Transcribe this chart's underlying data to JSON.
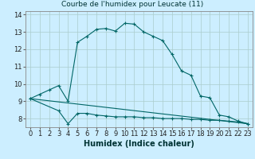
{
  "title": "Courbe de l'humidex pour Leucate (11)",
  "xlabel": "Humidex (Indice chaleur)",
  "bg_color": "#cceeff",
  "grid_color": "#aacccc",
  "line_color": "#006666",
  "xlim": [
    -0.5,
    23.5
  ],
  "ylim": [
    7.5,
    14.2
  ],
  "xticks": [
    0,
    1,
    2,
    3,
    4,
    5,
    6,
    7,
    8,
    9,
    10,
    11,
    12,
    13,
    14,
    15,
    16,
    17,
    18,
    19,
    20,
    21,
    22,
    23
  ],
  "yticks": [
    8,
    9,
    10,
    11,
    12,
    13,
    14
  ],
  "curve1_x": [
    0,
    1,
    2,
    3,
    4,
    5,
    6,
    7,
    8,
    9,
    10,
    11,
    12,
    13,
    14,
    15,
    16,
    17,
    18,
    19,
    20,
    21,
    22,
    23
  ],
  "curve1_y": [
    9.15,
    9.4,
    9.65,
    9.9,
    9.0,
    12.4,
    12.75,
    13.15,
    13.2,
    13.05,
    13.5,
    13.45,
    13.0,
    12.75,
    12.5,
    11.7,
    10.75,
    10.5,
    9.3,
    9.2,
    8.2,
    8.1,
    7.85,
    7.7
  ],
  "curve2_x": [
    0,
    3,
    4,
    5,
    6,
    7,
    8,
    9,
    10,
    11,
    12,
    13,
    14,
    15,
    16,
    17,
    18,
    19,
    20,
    21,
    22,
    23
  ],
  "curve2_y": [
    9.15,
    8.45,
    7.7,
    8.3,
    8.3,
    8.2,
    8.15,
    8.1,
    8.1,
    8.1,
    8.05,
    8.05,
    8.0,
    8.0,
    8.0,
    7.95,
    7.95,
    7.9,
    7.9,
    7.85,
    7.8,
    7.7
  ],
  "curve3_x": [
    0,
    23
  ],
  "curve3_y": [
    9.15,
    7.7
  ],
  "title_fontsize": 6.5,
  "xlabel_fontsize": 7,
  "tick_labelsize": 6,
  "lw": 0.8,
  "ms": 2.5
}
